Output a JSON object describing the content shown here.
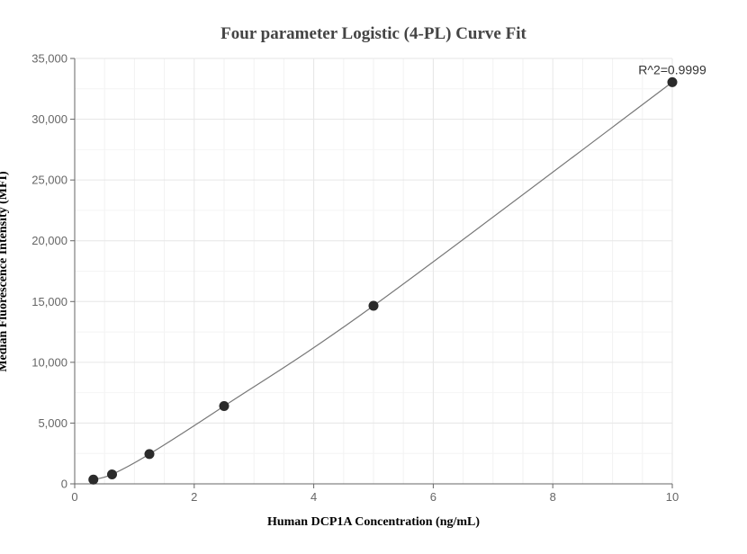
{
  "chart_data": {
    "type": "scatter",
    "title": "Four parameter Logistic (4-PL) Curve Fit",
    "xlabel": "Human DCP1A Concentration (ng/mL)",
    "ylabel": "Median Fluorescence Intensity (MFI)",
    "xlim": [
      0,
      10
    ],
    "ylim": [
      0,
      35000
    ],
    "x_ticks": [
      0,
      2,
      4,
      6,
      8,
      10
    ],
    "x_tick_labels": [
      "0",
      "2",
      "4",
      "6",
      "8",
      "10"
    ],
    "y_ticks": [
      0,
      5000,
      10000,
      15000,
      20000,
      25000,
      30000,
      35000
    ],
    "y_tick_labels": [
      "0",
      "5,000",
      "10,000",
      "15,000",
      "20,000",
      "25,000",
      "30,000",
      "35,000"
    ],
    "grid": true,
    "series": [
      {
        "points": [
          {
            "x": 0.3125,
            "y": 350
          },
          {
            "x": 0.625,
            "y": 780
          },
          {
            "x": 1.25,
            "y": 2450
          },
          {
            "x": 2.5,
            "y": 6400
          },
          {
            "x": 5,
            "y": 14650
          },
          {
            "x": 10,
            "y": 33050
          }
        ],
        "marker_color": "#2b2b2b"
      }
    ],
    "fit_curve": {
      "model": "4PL",
      "points": [
        {
          "x": 0.3125,
          "y": 350
        },
        {
          "x": 0.625,
          "y": 780
        },
        {
          "x": 1.25,
          "y": 2450
        },
        {
          "x": 2.5,
          "y": 6400
        },
        {
          "x": 5,
          "y": 14650
        },
        {
          "x": 10,
          "y": 33050
        }
      ],
      "line_color": "#777777"
    },
    "annotation": {
      "text": "R^2=0.9999",
      "x": 10,
      "y": 33050
    }
  }
}
